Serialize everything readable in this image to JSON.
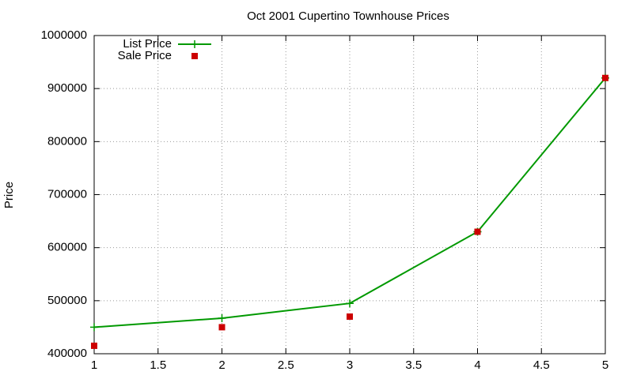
{
  "chart_data": {
    "type": "line",
    "title": "Oct 2001 Cupertino Townhouse Prices",
    "y_label": "Price",
    "x": [
      1,
      2,
      3,
      4,
      5
    ],
    "series": [
      {
        "name": "List Price",
        "color": "#009900",
        "style": "linespoints",
        "marker": "plus",
        "values": [
          450000,
          467000,
          495000,
          630000,
          920000
        ]
      },
      {
        "name": "Sale Price",
        "color": "#cc0000",
        "style": "points",
        "marker": "square",
        "values": [
          415000,
          450000,
          470000,
          630000,
          920000
        ]
      }
    ],
    "xlim": [
      1,
      5
    ],
    "xticks": [
      1,
      1.5,
      2,
      2.5,
      3,
      3.5,
      4,
      4.5,
      5
    ],
    "ylim": [
      400000,
      1000000
    ],
    "yticks": [
      400000,
      500000,
      600000,
      700000,
      800000,
      900000,
      1000000
    ],
    "grid": true,
    "legend": "top-left"
  }
}
